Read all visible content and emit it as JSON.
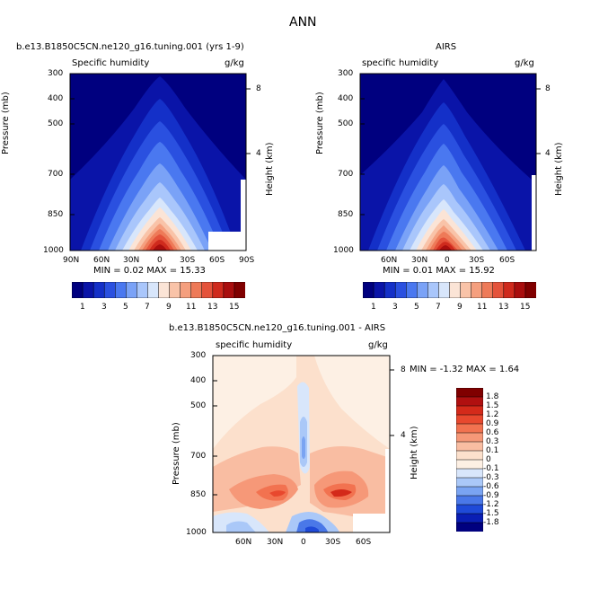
{
  "main_title": "ANN",
  "chart_data": [
    {
      "type": "heatmap",
      "title": "b.e13.B1850C5CN.ne120_g16.tuning.001 (yrs 1-9)",
      "left_label": "Specific humidity",
      "units": "g/kg",
      "ylabel": "Pressure (mb)",
      "right_label": "Height (km)",
      "x_ticks": [
        "90N",
        "60N",
        "30N",
        "0",
        "30S",
        "60S",
        "90S"
      ],
      "y_ticks": [
        "300",
        "400",
        "500",
        "700",
        "850",
        "1000"
      ],
      "height_ticks": [
        "8",
        "4"
      ],
      "stats": "MIN =   0.02   MAX =   15.33",
      "min": 0.02,
      "max": 15.33
    },
    {
      "type": "heatmap",
      "title": "AIRS",
      "left_label": "specific humidity",
      "units": "g/kg",
      "ylabel": "Pressure (mb)",
      "right_label": "Height (km)",
      "x_ticks": [
        "60N",
        "30N",
        "0",
        "30S",
        "60S"
      ],
      "y_ticks": [
        "300",
        "400",
        "500",
        "700",
        "850",
        "1000"
      ],
      "height_ticks": [
        "8",
        "4"
      ],
      "stats": "MIN =   0.01   MAX =   15.92",
      "min": 0.01,
      "max": 15.92
    },
    {
      "type": "heatmap",
      "title": "b.e13.B1850C5CN.ne120_g16.tuning.001 - AIRS",
      "left_label": "specific humidity",
      "units": "g/kg",
      "ylabel": "Pressure (mb)",
      "right_label": "Height (km)",
      "x_ticks": [
        "60N",
        "30N",
        "0",
        "30S",
        "60S"
      ],
      "y_ticks": [
        "300",
        "400",
        "500",
        "700",
        "850",
        "1000"
      ],
      "height_ticks": [
        "8",
        "4"
      ],
      "stats": "MIN =   -1.32   MAX =   1.64",
      "min": -1.32,
      "max": 1.64
    }
  ],
  "colorbar_main": {
    "labels": [
      "1",
      "3",
      "5",
      "7",
      "9",
      "11",
      "13",
      "15"
    ],
    "colors": [
      "#00007f",
      "#0a14a8",
      "#1430c8",
      "#2a50e0",
      "#4a78f0",
      "#7aa2f7",
      "#a9c6fb",
      "#d8e6fb",
      "#fbe4d6",
      "#f9c3a8",
      "#f59f7e",
      "#ee7a58",
      "#e4523a",
      "#cf2a1d",
      "#a90e0e",
      "#800000"
    ]
  },
  "colorbar_diff": {
    "labels": [
      "1.8",
      "1.5",
      "1.2",
      "0.9",
      "0.6",
      "0.3",
      "0.1",
      "0",
      "-0.1",
      "-0.3",
      "-0.6",
      "-0.9",
      "-1.2",
      "-1.5",
      "-1.8"
    ],
    "colors": [
      "#800000",
      "#b01010",
      "#d42a1a",
      "#e8482e",
      "#f27250",
      "#f69878",
      "#f9bda2",
      "#fce0cc",
      "#fdf0e4",
      "#d8e6fb",
      "#aac8f8",
      "#7aa4f2",
      "#4a78e8",
      "#1f4ad8",
      "#0a1eb4",
      "#00007f"
    ]
  }
}
